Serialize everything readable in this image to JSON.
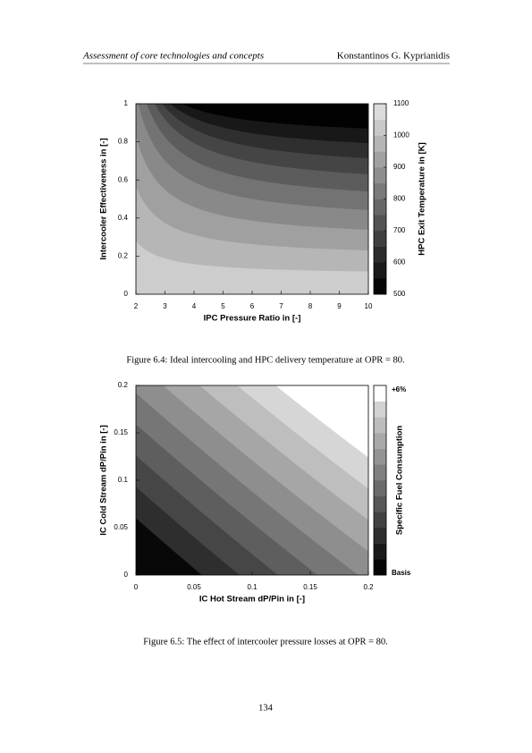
{
  "header": {
    "left": "Assessment of core technologies and concepts",
    "right": "Konstantinos G. Kyprianidis"
  },
  "chart_data": [
    {
      "type": "contour",
      "x_label": "IPC Pressure Ratio in [-]",
      "y_label": "Intercooler Effectiveness in [-]",
      "colorbar_label": "HPC Exit Temperature in [K]",
      "xlim": [
        2,
        10
      ],
      "xticks": [
        2,
        3,
        4,
        5,
        6,
        7,
        8,
        9,
        10
      ],
      "ylim": [
        0,
        1
      ],
      "yticks": [
        0,
        0.2,
        0.4,
        0.6,
        0.8,
        1
      ],
      "clim": [
        500,
        1100
      ],
      "cticks": [
        500,
        600,
        700,
        800,
        900,
        1000,
        1100
      ]
    },
    {
      "type": "contour",
      "x_label": "IC Hot Stream dP/Pin in [-]",
      "y_label": "IC Cold Stream dP/Pin in [-]",
      "colorbar_label": "Specific Fuel Consumption",
      "colorbar_top_label": "+6%",
      "colorbar_bottom_label": "Basis",
      "xlim": [
        0,
        0.2
      ],
      "xticks": [
        0,
        0.05,
        0.1,
        0.15,
        0.2
      ],
      "ylim": [
        0,
        0.2
      ],
      "yticks": [
        0,
        0.05,
        0.1,
        0.15,
        0.2
      ]
    }
  ],
  "captions": [
    "Figure 6.4: Ideal intercooling and HPC delivery temperature at OPR = 80.",
    "Figure 6.5: The effect of intercooler pressure losses at OPR = 80."
  ],
  "page_number": "134"
}
